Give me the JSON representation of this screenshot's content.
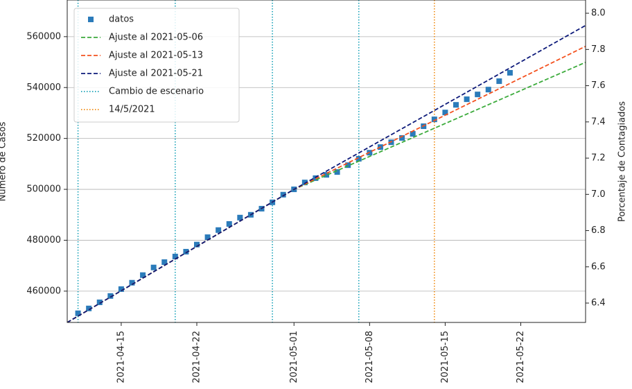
{
  "chart_data": {
    "type": "line",
    "ylabel": "Número de Casos",
    "y2label": "Porcentaje de Contagiados",
    "xlim": [
      "2021-04-10",
      "2021-05-28"
    ],
    "xticks": [
      "2021-04-15",
      "2021-04-22",
      "2021-05-01",
      "2021-05-08",
      "2021-05-15",
      "2021-05-22"
    ],
    "ylim": [
      447700,
      574400
    ],
    "yticks": [
      460000,
      480000,
      500000,
      520000,
      540000,
      560000
    ],
    "y2lim": [
      6.293,
      8.073
    ],
    "y2ticks": [
      6.4,
      6.6,
      6.8,
      {
        "value": 7,
        "label": "7.0"
      },
      7.2,
      7.4,
      7.6,
      7.8,
      {
        "value": 8,
        "label": "8.0"
      }
    ],
    "grid": true,
    "legend": "upper left",
    "series": [
      {
        "name": "datos",
        "color": "#2b7bba",
        "style": "marker",
        "x": [
          "2021-04-11",
          "2021-04-12",
          "2021-04-13",
          "2021-04-14",
          "2021-04-15",
          "2021-04-16",
          "2021-04-17",
          "2021-04-18",
          "2021-04-19",
          "2021-04-20",
          "2021-04-21",
          "2021-04-22",
          "2021-04-23",
          "2021-04-24",
          "2021-04-25",
          "2021-04-26",
          "2021-04-27",
          "2021-04-28",
          "2021-04-29",
          "2021-04-30",
          "2021-05-01",
          "2021-05-02",
          "2021-05-03",
          "2021-05-04",
          "2021-05-05",
          "2021-05-06",
          "2021-05-07",
          "2021-05-08",
          "2021-05-09",
          "2021-05-10",
          "2021-05-11",
          "2021-05-12",
          "2021-05-13",
          "2021-05-14",
          "2021-05-15",
          "2021-05-16",
          "2021-05-17",
          "2021-05-18",
          "2021-05-19",
          "2021-05-20",
          "2021-05-21"
        ],
        "values": [
          451300,
          453200,
          455600,
          458100,
          460800,
          463300,
          466300,
          469300,
          471400,
          473600,
          475500,
          478300,
          481200,
          484000,
          486400,
          488900,
          490000,
          492400,
          494900,
          497900,
          500000,
          502700,
          504400,
          505700,
          506800,
          509500,
          512000,
          514400,
          516600,
          518500,
          520200,
          521800,
          524800,
          527500,
          530200,
          533200,
          535400,
          537300,
          539200,
          542500,
          545800
        ]
      },
      {
        "name": "Ajuste al 2021-05-06",
        "color": "#3cab3c",
        "style": "dashed",
        "x": [
          "2021-04-10",
          "2021-05-01",
          "2021-05-28"
        ],
        "values": [
          447700,
          500000,
          549900
        ]
      },
      {
        "name": "Ajuste al 2021-05-13",
        "color": "#f4511e",
        "style": "dashed",
        "x": [
          "2021-04-10",
          "2021-05-01",
          "2021-05-28"
        ],
        "values": [
          447700,
          500000,
          556200
        ]
      },
      {
        "name": "Ajuste al 2021-05-21",
        "color": "#0d1a7a",
        "style": "dashed",
        "x": [
          "2021-04-10",
          "2021-05-01",
          "2021-05-28"
        ],
        "values": [
          447700,
          500000,
          564400
        ]
      }
    ],
    "vlines": [
      {
        "name": "Cambio de escenario",
        "color": "#17a2b8",
        "x": [
          "2021-04-11",
          "2021-04-20",
          "2021-04-29",
          "2021-05-07"
        ]
      },
      {
        "name": "14/5/2021",
        "color": "#f08a10",
        "x": [
          "2021-05-14"
        ]
      }
    ]
  }
}
